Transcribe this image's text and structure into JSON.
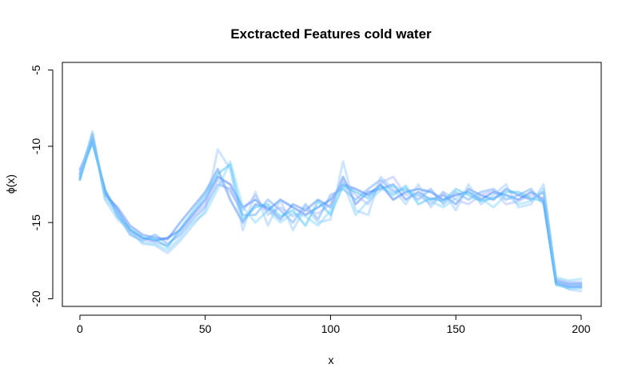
{
  "chart_data": {
    "type": "line",
    "title": "Exctracted Features cold water",
    "xlabel": "x",
    "ylabel": "ϕ(x)",
    "xlim": [
      -7,
      208
    ],
    "ylim": [
      -20.5,
      -4.5
    ],
    "x_ticks": [
      0,
      50,
      100,
      150,
      200
    ],
    "y_ticks": [
      -20,
      -15,
      -10,
      -5
    ],
    "x_tick_labels": [
      "0",
      "50",
      "100",
      "150",
      "200"
    ],
    "y_tick_labels": [
      "-20",
      "-15",
      "-10",
      "-5"
    ],
    "grid": false,
    "legend": "none",
    "x_step": 5,
    "series": [
      {
        "color": "#1E6FFF",
        "values": [
          -11.8,
          -9.5,
          -13.0,
          -14.2,
          -15.5,
          -16.0,
          -16.2,
          -16.0,
          -15.5,
          -14.5,
          -13.5,
          -12.0,
          -12.5,
          -14.0,
          -13.5,
          -14.2,
          -13.5,
          -14.0,
          -14.5,
          -14.0,
          -13.5,
          -12.5,
          -12.8,
          -13.2,
          -12.5,
          -13.5,
          -13.0,
          -12.8,
          -13.0,
          -13.5,
          -13.2,
          -13.0,
          -13.5,
          -13.0,
          -13.2,
          -13.5,
          -13.0,
          -13.5,
          -19.0,
          -19.2,
          -19.2
        ]
      },
      {
        "color": "#3B82F6",
        "values": [
          -12.2,
          -9.2,
          -13.2,
          -14.0,
          -15.2,
          -15.8,
          -16.0,
          -16.1,
          -15.0,
          -14.0,
          -13.0,
          -11.5,
          -13.5,
          -15.0,
          -13.8,
          -14.0,
          -14.8,
          -13.8,
          -14.2,
          -13.5,
          -14.0,
          -12.0,
          -13.8,
          -13.0,
          -12.8,
          -12.5,
          -13.5,
          -13.0,
          -13.5,
          -13.2,
          -13.8,
          -12.8,
          -13.2,
          -13.5,
          -12.8,
          -13.2,
          -13.5,
          -13.0,
          -18.8,
          -19.0,
          -19.0
        ]
      },
      {
        "color": "#60A5FA",
        "values": [
          -11.5,
          -9.8,
          -12.8,
          -14.5,
          -15.8,
          -16.2,
          -15.8,
          -16.4,
          -15.8,
          -14.8,
          -14.0,
          -12.5,
          -12.8,
          -14.5,
          -14.5,
          -13.5,
          -14.2,
          -15.0,
          -13.8,
          -14.8,
          -13.2,
          -12.8,
          -13.5,
          -12.8,
          -12.2,
          -13.0,
          -12.8,
          -13.5,
          -12.8,
          -13.8,
          -13.0,
          -13.5,
          -13.0,
          -12.8,
          -13.5,
          -13.2,
          -12.8,
          -13.8,
          -18.9,
          -19.1,
          -19.1
        ]
      },
      {
        "color": "#93C5FD",
        "values": [
          -12.0,
          -9.0,
          -13.5,
          -14.8,
          -15.5,
          -16.4,
          -16.5,
          -17.0,
          -16.2,
          -15.2,
          -14.2,
          -10.2,
          -11.5,
          -15.5,
          -13.0,
          -15.2,
          -13.5,
          -15.5,
          -14.0,
          -15.0,
          -14.8,
          -11.0,
          -14.2,
          -14.5,
          -12.0,
          -12.8,
          -13.8,
          -12.5,
          -14.0,
          -13.0,
          -14.2,
          -12.5,
          -13.8,
          -13.2,
          -12.5,
          -14.0,
          -13.8,
          -12.5,
          -18.8,
          -19.4,
          -19.5
        ]
      },
      {
        "color": "#A5B4FC",
        "values": [
          -11.6,
          -9.4,
          -13.1,
          -14.3,
          -15.6,
          -16.1,
          -16.3,
          -16.5,
          -15.6,
          -14.6,
          -13.8,
          -12.2,
          -13.0,
          -14.2,
          -13.2,
          -14.5,
          -14.0,
          -14.6,
          -14.2,
          -14.4,
          -13.8,
          -12.2,
          -13.2,
          -13.8,
          -12.4,
          -12.0,
          -13.2,
          -13.2,
          -13.8,
          -13.0,
          -13.5,
          -13.8,
          -13.2,
          -12.9,
          -13.8,
          -13.6,
          -13.2,
          -13.4,
          -18.7,
          -18.9,
          -18.9
        ]
      },
      {
        "color": "#38BDF8",
        "values": [
          -12.1,
          -9.7,
          -12.9,
          -14.6,
          -15.4,
          -16.0,
          -16.1,
          -16.6,
          -15.4,
          -14.3,
          -13.2,
          -11.8,
          -11.2,
          -14.8,
          -14.0,
          -13.8,
          -14.6,
          -14.2,
          -15.2,
          -13.6,
          -14.5,
          -12.6,
          -13.0,
          -13.4,
          -12.6,
          -13.2,
          -12.6,
          -13.8,
          -13.4,
          -13.6,
          -12.8,
          -13.2,
          -13.6,
          -13.4,
          -13.0,
          -13.0,
          -13.4,
          -13.6,
          -19.1,
          -19.3,
          -19.3
        ]
      },
      {
        "color": "#7DD3FC",
        "values": [
          -11.9,
          -9.3,
          -13.4,
          -14.4,
          -15.7,
          -16.3,
          -16.4,
          -16.8,
          -16.0,
          -15.0,
          -14.4,
          -12.8,
          -11.0,
          -14.0,
          -15.0,
          -14.2,
          -15.0,
          -14.4,
          -14.6,
          -15.2,
          -14.2,
          -12.4,
          -14.5,
          -13.6,
          -12.9,
          -12.6,
          -13.0,
          -13.2,
          -13.6,
          -14.0,
          -13.4,
          -13.0,
          -13.4,
          -14.0,
          -13.2,
          -13.8,
          -13.6,
          -12.8,
          -18.6,
          -18.8,
          -18.7
        ]
      }
    ]
  }
}
